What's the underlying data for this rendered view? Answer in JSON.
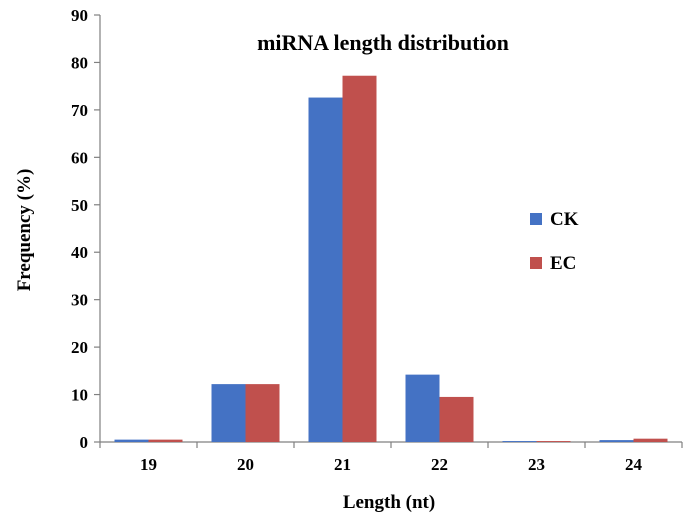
{
  "chart_data": {
    "type": "bar",
    "title": "miRNA length distribution",
    "xlabel": "Length (nt)",
    "ylabel": "Frequency (%)",
    "ylim": [
      0,
      90
    ],
    "yticks": [
      0,
      10,
      20,
      30,
      40,
      50,
      60,
      70,
      80,
      90
    ],
    "categories": [
      "19",
      "20",
      "21",
      "22",
      "23",
      "24"
    ],
    "series": [
      {
        "name": "CK",
        "color": "#4472c4",
        "values": [
          0.5,
          12.2,
          72.6,
          14.2,
          0.2,
          0.4
        ]
      },
      {
        "name": "EC",
        "color": "#c0504d",
        "values": [
          0.5,
          12.2,
          77.2,
          9.5,
          0.2,
          0.7
        ]
      }
    ],
    "grid": false,
    "legend_position": "right"
  }
}
